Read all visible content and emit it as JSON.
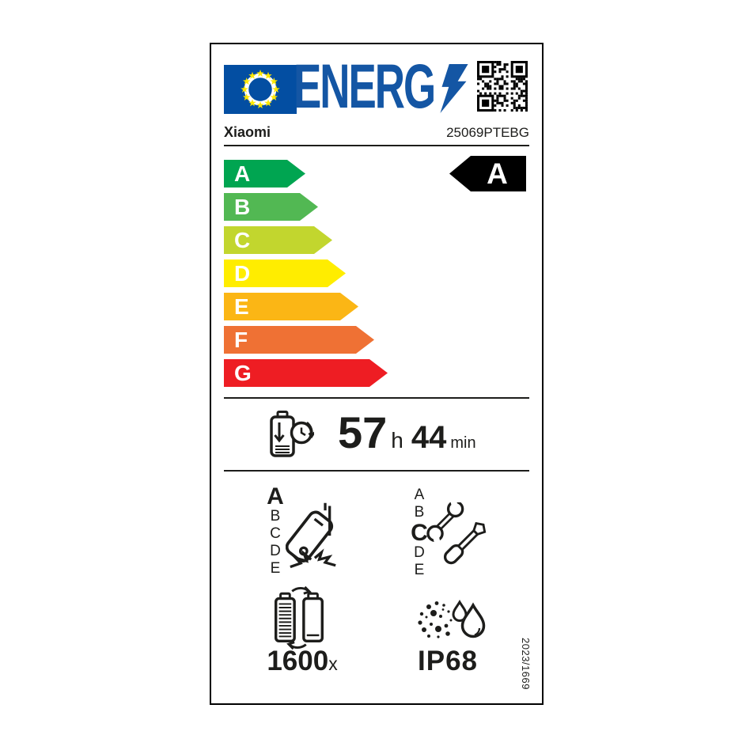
{
  "header": {
    "logo_text": "ENERG",
    "icons": {
      "eu_flag": "eu-flag-12-stars",
      "lightning": "lightning-bolt",
      "qr": "qr-code"
    }
  },
  "product": {
    "brand": "Xiaomi",
    "model": "25069PTEBG"
  },
  "energy_scale": {
    "rating": "A",
    "grades": [
      {
        "letter": "A",
        "color": "#00a551"
      },
      {
        "letter": "B",
        "color": "#52b853"
      },
      {
        "letter": "C",
        "color": "#c2d62e"
      },
      {
        "letter": "D",
        "color": "#ffed00"
      },
      {
        "letter": "E",
        "color": "#fbb615"
      },
      {
        "letter": "F",
        "color": "#ef7134"
      },
      {
        "letter": "G",
        "color": "#ee1d23"
      }
    ]
  },
  "battery_endurance": {
    "hours": "57",
    "hours_unit": "h",
    "minutes": "44",
    "minutes_unit": "min",
    "icon": "battery-discharge-clock"
  },
  "drop_resistance": {
    "value": "A",
    "scale": [
      "A",
      "B",
      "C",
      "D",
      "E"
    ],
    "icon": "falling-phone-impact"
  },
  "repairability": {
    "value": "C",
    "scale": [
      "A",
      "B",
      "C",
      "D",
      "E"
    ],
    "icon": "wrench-screwdriver"
  },
  "battery_cycles": {
    "count": "1600",
    "suffix": "x",
    "icon": "battery-recharge-cycle"
  },
  "ingress_protection": {
    "value": "IP68",
    "icon": "dust-water-drops"
  },
  "regulation_number": "2023/1669",
  "colors": {
    "logo_blue": "#1456a4",
    "flag_blue": "#034ea2",
    "star_yellow": "#ffe800",
    "ink": "#1d1d1b",
    "rating_badge": "#000000"
  }
}
